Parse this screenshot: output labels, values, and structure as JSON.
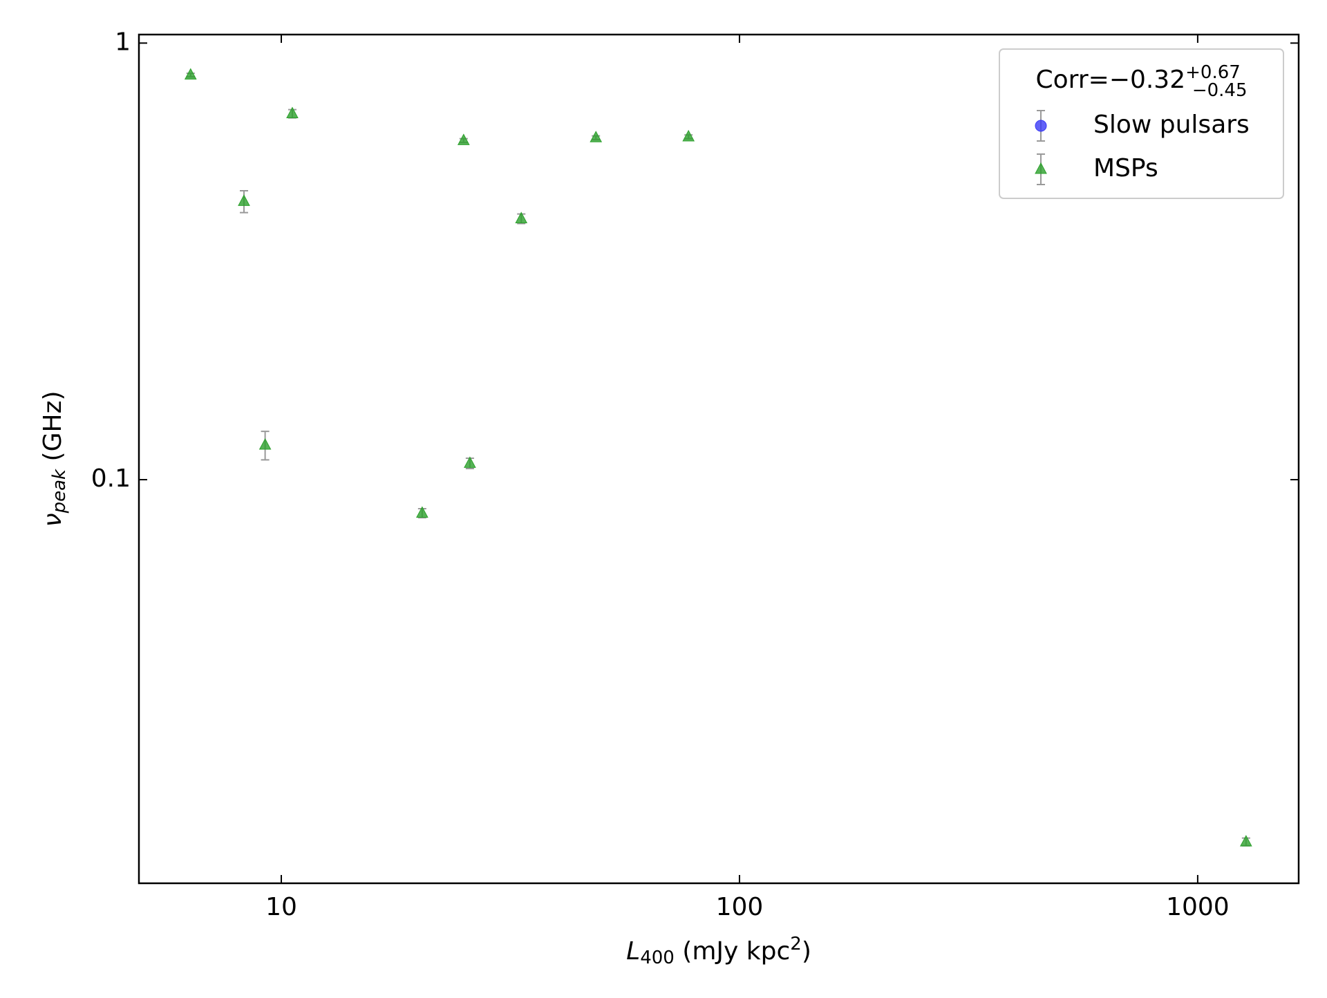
{
  "chart_data": {
    "type": "scatter",
    "xlabel": {
      "main": "L",
      "sub": "400",
      "rest": " (mJy kpc",
      "sup": "2",
      "end": ")"
    },
    "ylabel": {
      "main": "ν",
      "sub": "peak",
      "rest": " (GHz)"
    },
    "xlog": true,
    "ylog": true,
    "xlim": [
      4.89,
      1661
    ],
    "ylim": [
      0.0119,
      1.046
    ],
    "xticks": [
      10,
      100,
      1000
    ],
    "yticks": [
      0.1,
      1
    ],
    "legend": {
      "position": "upper right",
      "title": {
        "main": "Corr=−0.32",
        "sup": "+0.67",
        "sub": "−0.45"
      }
    },
    "series": [
      {
        "name": "Slow pulsars",
        "color": "#3b3bf5",
        "marker": "circle",
        "x": [],
        "values": [],
        "errors": []
      },
      {
        "name": "MSPs",
        "color": "#2ca02c",
        "marker": "triangle",
        "x": [
          6.34,
          8.29,
          9.22,
          10.57,
          20.3,
          25.0,
          25.8,
          33.4,
          48.6,
          77.4,
          1275
        ],
        "values": [
          0.845,
          0.434,
          0.12,
          0.689,
          0.0838,
          0.598,
          0.109,
          0.396,
          0.607,
          0.61,
          0.0148
        ],
        "errors": [
          0.008,
          0.025,
          0.009,
          0.015,
          0.002,
          0.006,
          0.003,
          0.01,
          0.006,
          0.006,
          0.0003
        ]
      }
    ]
  }
}
